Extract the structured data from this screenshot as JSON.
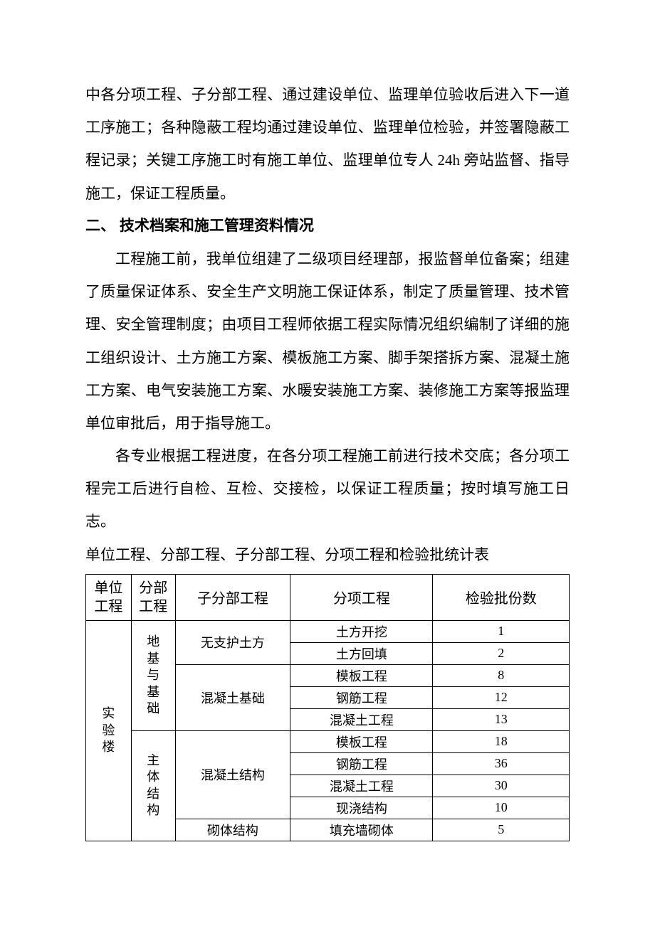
{
  "para1": "中各分项工程、子分部工程、通过建设单位、监理单位验收后进入下一道工序施工；各种隐蔽工程均通过建设单位、监理单位检验，并签署隐蔽工程记录；关键工序施工时有施工单位、监理单位专人 24h 旁站监督、指导施工，保证工程质量。",
  "heading": "二、 技术档案和施工管理资料情况",
  "para2": "工程施工前，我单位组建了二级项目经理部，报监督单位备案；组建了质量保证体系、安全生产文明施工保证体系，制定了质量管理、技术管理、安全管理制度；由项目工程师依据工程实际情况组织编制了详细的施工组织设计、土方施工方案、模板施工方案、脚手架搭拆方案、混凝土施工方案、电气安装施工方案、水暖安装施工方案、装修施工方案等报监理单位审批后，用于指导施工。",
  "para3": "各专业根据工程进度，在各分项工程施工前进行技术交底；各分项工程完工后进行自检、互检、交接检，以保证工程质量；按时填写施工日志。",
  "tableCaption": "单位工程、分部工程、子分部工程、分项工程和检验批统计表",
  "table": {
    "headers": {
      "unit": "单位工程",
      "division": "分部工程",
      "subdivision": "子分部工程",
      "item": "分项工程",
      "batch": "检验批份数"
    },
    "unit": "实验楼",
    "divisions": [
      {
        "name": "地基与基础",
        "subdivisions": [
          {
            "name": "无支护土方",
            "items": [
              {
                "name": "土方开挖",
                "batch": "1"
              },
              {
                "name": "土方回填",
                "batch": "2"
              }
            ]
          },
          {
            "name": "混凝土基础",
            "items": [
              {
                "name": "模板工程",
                "batch": "8"
              },
              {
                "name": "钢筋工程",
                "batch": "12"
              },
              {
                "name": "混凝土工程",
                "batch": "13"
              }
            ]
          }
        ]
      },
      {
        "name": "主体结构",
        "subdivisions": [
          {
            "name": "混凝土结构",
            "items": [
              {
                "name": "模板工程",
                "batch": "18"
              },
              {
                "name": "钢筋工程",
                "batch": "36"
              },
              {
                "name": "混凝土工程",
                "batch": "30"
              },
              {
                "name": "现浇结构",
                "batch": "10"
              }
            ]
          },
          {
            "name": "砌体结构",
            "items": [
              {
                "name": "填充墙砌体",
                "batch": "5"
              }
            ]
          }
        ]
      }
    ]
  }
}
